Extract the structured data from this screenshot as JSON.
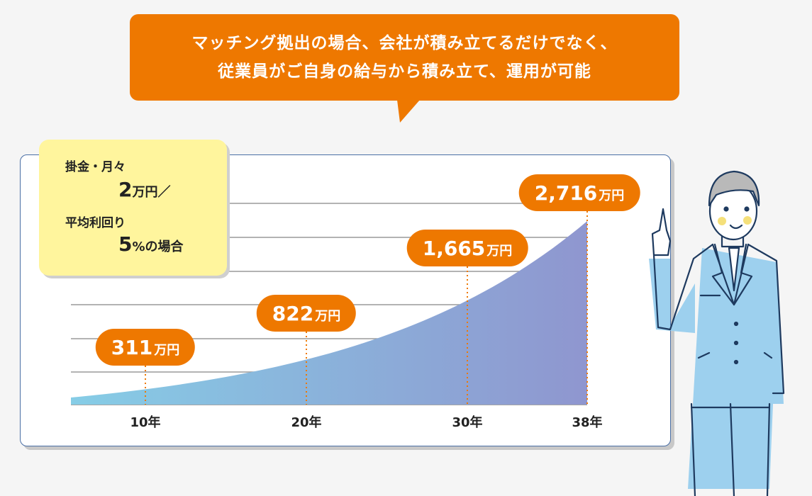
{
  "bubble": {
    "line1": "マッチング拠出の場合、会社が積み立てるだけでなく、",
    "line2": "従業員がご自身の給与から積み立て、運用が可能"
  },
  "note": {
    "line1": "掛金・月々",
    "line2_num": "2",
    "line2_unit": "万円／",
    "line3": "平均利回り",
    "line4_num": "5",
    "line4_unit": "%の場合"
  },
  "colors": {
    "accent": "#ee7800",
    "note_bg": "#fff59d",
    "area_start": "#86cde6",
    "area_end": "#8f96cf",
    "card_border": "#4a6fa5"
  },
  "chart_data": {
    "type": "area",
    "unit": "万円",
    "categories": [
      "10年",
      "20年",
      "30年",
      "38年"
    ],
    "x": [
      10,
      20,
      30,
      38
    ],
    "values": [
      311,
      822,
      1665,
      2716
    ],
    "labels": [
      "311",
      "822",
      "1,665",
      "2,716"
    ],
    "grid": true
  }
}
